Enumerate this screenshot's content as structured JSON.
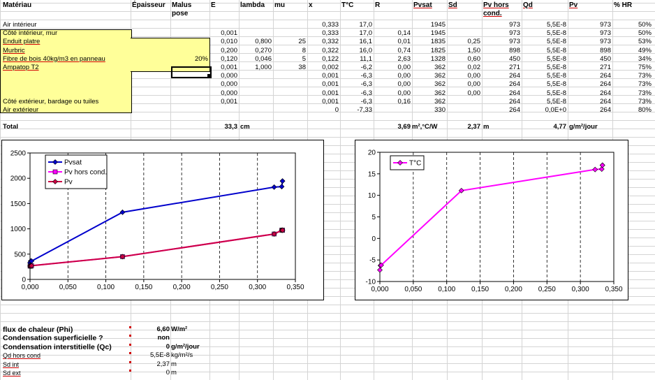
{
  "headers": {
    "materiau": "Matériau",
    "epaisseur": "Épaisseur",
    "malus": "Malus pose",
    "e": "E",
    "lambda": "lambda",
    "mu": "mu",
    "x": "x",
    "tc": "T°C",
    "r": "R",
    "pvsat": "Pvsat",
    "sd": "Sd",
    "pvhors": "Pv hors cond.",
    "qd": "Qd",
    "pv": "Pv",
    "hr": "% HR"
  },
  "rows": [
    {
      "name": "Air intérieur",
      "malus": "",
      "e": "",
      "lambda": "",
      "mu": "",
      "x": "0,333",
      "tc": "17,0",
      "r": "",
      "pvsat": "1945",
      "sd": "",
      "pvhors": "973",
      "qd": "5,5E-8",
      "pv": "973",
      "hr": "50%"
    },
    {
      "name": "Côté intérieur, mur",
      "malus": "",
      "e": "0,001",
      "lambda": "",
      "mu": "",
      "x": "0,333",
      "tc": "17,0",
      "r": "0,14",
      "pvsat": "1945",
      "sd": "",
      "pvhors": "973",
      "qd": "5,5E-8",
      "pv": "973",
      "hr": "50%"
    },
    {
      "name": "Enduit platre",
      "malus": "",
      "e": "0,010",
      "lambda": "0,800",
      "mu": "25",
      "x": "0,332",
      "tc": "16,1",
      "r": "0,01",
      "pvsat": "1835",
      "sd": "0,25",
      "pvhors": "973",
      "qd": "5,5E-8",
      "pv": "973",
      "hr": "53%"
    },
    {
      "name": "Murbric",
      "malus": "",
      "e": "0,200",
      "lambda": "0,270",
      "mu": "8",
      "x": "0,322",
      "tc": "16,0",
      "r": "0,74",
      "pvsat": "1825",
      "sd": "1,50",
      "pvhors": "898",
      "qd": "5,5E-8",
      "pv": "898",
      "hr": "49%"
    },
    {
      "name": "Fibre de bois 40kg/m3 en panneau",
      "malus": "20%",
      "e": "0,120",
      "lambda": "0,046",
      "mu": "5",
      "x": "0,122",
      "tc": "11,1",
      "r": "2,63",
      "pvsat": "1328",
      "sd": "0,60",
      "pvhors": "450",
      "qd": "5,5E-8",
      "pv": "450",
      "hr": "34%"
    },
    {
      "name": "Ampatop T2",
      "malus": "",
      "e": "0,001",
      "lambda": "1,000",
      "mu": "38",
      "x": "0,002",
      "tc": "-6,2",
      "r": "0,00",
      "pvsat": "362",
      "sd": "0,02",
      "pvhors": "271",
      "qd": "5,5E-8",
      "pv": "271",
      "hr": "75%"
    },
    {
      "name": "",
      "malus": "",
      "e": "0,000",
      "lambda": "",
      "mu": "",
      "x": "0,001",
      "tc": "-6,3",
      "r": "0,00",
      "pvsat": "362",
      "sd": "0,00",
      "pvhors": "264",
      "qd": "5,5E-8",
      "pv": "264",
      "hr": "73%"
    },
    {
      "name": "",
      "malus": "",
      "e": "0,000",
      "lambda": "",
      "mu": "",
      "x": "0,001",
      "tc": "-6,3",
      "r": "0,00",
      "pvsat": "362",
      "sd": "0,00",
      "pvhors": "264",
      "qd": "5,5E-8",
      "pv": "264",
      "hr": "73%"
    },
    {
      "name": "",
      "malus": "",
      "e": "0,000",
      "lambda": "",
      "mu": "",
      "x": "0,001",
      "tc": "-6,3",
      "r": "0,00",
      "pvsat": "362",
      "sd": "0,00",
      "pvhors": "264",
      "qd": "5,5E-8",
      "pv": "264",
      "hr": "73%"
    },
    {
      "name": "Côté extérieur, bardage ou tuiles",
      "malus": "",
      "e": "0,001",
      "lambda": "",
      "mu": "",
      "x": "0,001",
      "tc": "-6,3",
      "r": "0,16",
      "pvsat": "362",
      "sd": "",
      "pvhors": "264",
      "qd": "5,5E-8",
      "pv": "264",
      "hr": "73%"
    },
    {
      "name": "Air extérieur",
      "malus": "",
      "e": "",
      "lambda": "",
      "mu": "",
      "x": "0",
      "tc": "-7,33",
      "r": "",
      "pvsat": "330",
      "sd": "",
      "pvhors": "264",
      "qd": "0,0E+0",
      "pv": "264",
      "hr": "80%"
    }
  ],
  "total": {
    "label": "Total",
    "e_value": "33,3",
    "e_unit": "cm",
    "r_value": "3,69",
    "r_unit": "m²,°C/W",
    "sd_value": "2,37",
    "sd_unit": "m",
    "pv_value": "4,77",
    "pv_unit": "g/m²/jour"
  },
  "summary": [
    {
      "label": "flux de chaleur (Phi)",
      "value": "6,60",
      "unit": "W/m²",
      "bold": true
    },
    {
      "label": "Condensation superficielle ?",
      "value": "non",
      "unit": "",
      "bold": true
    },
    {
      "label": "Condensation interstitielle (Qc)",
      "value": "0",
      "unit": "g/m²/jour",
      "bold": true
    },
    {
      "label": "Qd hors cond",
      "value": "5,5E-8",
      "unit": "kg/m²/s",
      "bold": false
    },
    {
      "label": "Sd int",
      "value": "2,37",
      "unit": "m",
      "bold": false
    },
    {
      "label": "Sd ext",
      "value": "0",
      "unit": "m",
      "bold": false
    }
  ],
  "chart_data": [
    {
      "type": "line",
      "title": "",
      "xlim": [
        0,
        0.35
      ],
      "ylim": [
        0,
        2500
      ],
      "xticks": [
        "0,000",
        "0,050",
        "0,100",
        "0,150",
        "0,200",
        "0,250",
        "0,300",
        "0,350"
      ],
      "yticks": [
        "0",
        "500",
        "1000",
        "1500",
        "2000",
        "2500"
      ],
      "legend": "top-left",
      "series": [
        {
          "name": "Pvsat",
          "color": "#0000cc",
          "marker": "diamond",
          "x": [
            0,
            0.001,
            0.001,
            0.001,
            0.002,
            0.122,
            0.322,
            0.332,
            0.333,
            0.333
          ],
          "y": [
            330,
            362,
            362,
            362,
            362,
            1328,
            1825,
            1835,
            1945,
            1945
          ]
        },
        {
          "name": "Pv hors cond.",
          "color": "#ff00ff",
          "marker": "square",
          "x": [
            0,
            0.001,
            0.001,
            0.001,
            0.002,
            0.122,
            0.322,
            0.332,
            0.333,
            0.333
          ],
          "y": [
            264,
            264,
            264,
            264,
            271,
            450,
            898,
            973,
            973,
            973
          ]
        },
        {
          "name": "Pv",
          "color": "#cc0044",
          "marker": "diamond",
          "x": [
            0,
            0.001,
            0.001,
            0.001,
            0.002,
            0.122,
            0.322,
            0.332,
            0.333,
            0.333
          ],
          "y": [
            264,
            264,
            264,
            264,
            271,
            450,
            898,
            973,
            973,
            973
          ]
        }
      ]
    },
    {
      "type": "line",
      "title": "",
      "xlim": [
        0,
        0.35
      ],
      "ylim": [
        -10,
        20
      ],
      "xticks": [
        "0,000",
        "0,050",
        "0,100",
        "0,150",
        "0,200",
        "0,250",
        "0,300",
        "0,350"
      ],
      "yticks": [
        "-10",
        "-5",
        "0",
        "5",
        "10",
        "15",
        "20"
      ],
      "legend": "top-left",
      "series": [
        {
          "name": "T°C",
          "color": "#ff00ff",
          "marker": "diamond",
          "x": [
            0,
            0.001,
            0.001,
            0.001,
            0.002,
            0.122,
            0.322,
            0.332,
            0.333,
            0.333
          ],
          "y": [
            -7.33,
            -6.3,
            -6.3,
            -6.3,
            -6.2,
            11.1,
            16.0,
            16.1,
            17.0,
            17.0
          ]
        }
      ]
    }
  ]
}
